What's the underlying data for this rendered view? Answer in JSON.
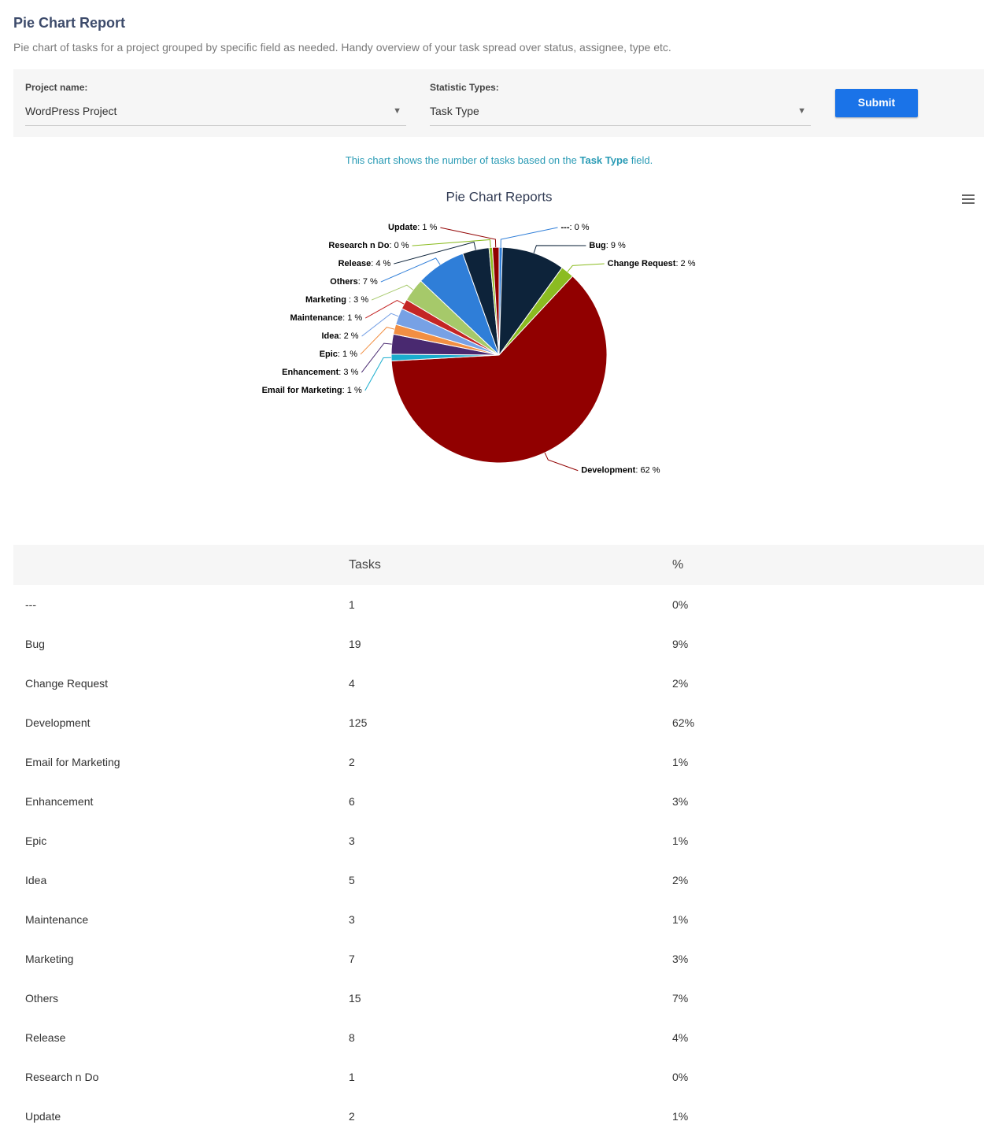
{
  "header": {
    "title": "Pie Chart Report",
    "description": "Pie chart of tasks for a project grouped by specific field as needed. Handy overview of your task spread over status, assignee, type etc."
  },
  "form": {
    "project_label": "Project name:",
    "project_value": "WordPress Project",
    "stat_label": "Statistic Types:",
    "stat_value": "Task Type",
    "submit": "Submit"
  },
  "chart_note": {
    "before": "This chart shows the number of tasks based on the",
    "field": "Task Type",
    "after": "field."
  },
  "chart_data": {
    "type": "pie",
    "title": "Pie Chart Reports",
    "categories": [
      "---",
      "Bug",
      "Change Request",
      "Development",
      "Email for Marketing",
      "Enhancement",
      "Epic",
      "Idea",
      "Maintenance",
      "Marketing",
      "Others",
      "Release",
      "Research n Do",
      "Update"
    ],
    "values": [
      1,
      19,
      4,
      125,
      2,
      6,
      3,
      5,
      3,
      7,
      15,
      8,
      1,
      2
    ],
    "percent_labels": [
      ": 0 %",
      ": 9 %",
      ": 2 %",
      ": 62 %",
      ": 1 %",
      ": 3 %",
      ": 1 %",
      ": 2 %",
      ": 1 %",
      " : 3 %",
      ": 7 %",
      ": 4 %",
      ": 0 %",
      ": 1 %"
    ],
    "colors": [
      "#2f7ed8",
      "#0d233a",
      "#8bbc21",
      "#910000",
      "#1aadce",
      "#492970",
      "#f28f43",
      "#77a1e5",
      "#c42525",
      "#a6c96a",
      "#2f7ed8",
      "#0d233a",
      "#8bbc21",
      "#910000"
    ]
  },
  "table": {
    "columns": [
      "Tasks",
      "%"
    ],
    "rows": [
      [
        "---",
        1,
        "0%"
      ],
      [
        "Bug",
        19,
        "9%"
      ],
      [
        "Change Request",
        4,
        "2%"
      ],
      [
        "Development",
        125,
        "62%"
      ],
      [
        "Email for Marketing",
        2,
        "1%"
      ],
      [
        "Enhancement",
        6,
        "3%"
      ],
      [
        "Epic",
        3,
        "1%"
      ],
      [
        "Idea",
        5,
        "2%"
      ],
      [
        "Maintenance",
        3,
        "1%"
      ],
      [
        "Marketing",
        7,
        "3%"
      ],
      [
        "Others",
        15,
        "7%"
      ],
      [
        "Release",
        8,
        "4%"
      ],
      [
        "Research n Do",
        1,
        "0%"
      ],
      [
        "Update",
        2,
        "1%"
      ]
    ]
  }
}
